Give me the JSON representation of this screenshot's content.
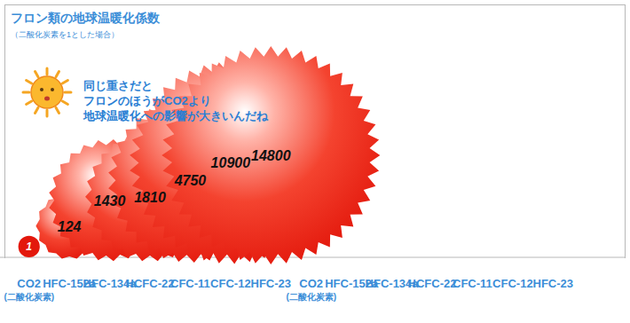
{
  "chart_data": {
    "type": "bubble",
    "title": "フロン類の地球温暖化係数",
    "subtitle": "（二酸化炭素を1とした場合）",
    "annotations": [
      "同じ重さだと",
      "フロンのほうがCO2より",
      "地球温暖化への影響が大きいんだね"
    ],
    "categories": [
      "CO2\n(二酸化炭素)",
      "HFC-152a",
      "HFC-134a",
      "HCFC-22",
      "CFC-11",
      "CFC-12",
      "HFC-23"
    ],
    "values": [
      1,
      124,
      1430,
      1810,
      4750,
      10900,
      14800
    ],
    "color": "#e3180c",
    "data_labels": true,
    "tick_labels": "x"
  }
}
